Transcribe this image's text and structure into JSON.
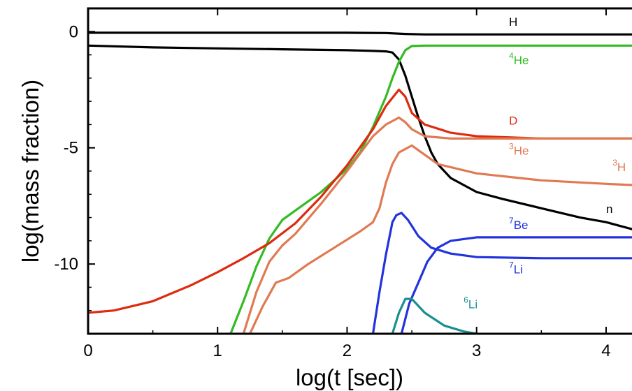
{
  "chart_data": {
    "type": "line",
    "xlabel": "log(t [sec])",
    "ylabel": "log(mass fraction)",
    "xlim": [
      0,
      4.2
    ],
    "ylim": [
      -13,
      1
    ],
    "x_ticks": [
      0,
      1,
      2,
      3,
      4
    ],
    "y_ticks": [
      0,
      -5,
      -10
    ],
    "x_tick_labels": [
      "0",
      "1",
      "2",
      "3",
      "4"
    ],
    "y_tick_labels": [
      "0",
      "-5",
      "-10"
    ],
    "grid": false,
    "legend": "none",
    "series": [
      {
        "id": "H",
        "sup": "",
        "base": "H",
        "color": "#000000",
        "points": [
          [
            0,
            -0.05
          ],
          [
            1,
            -0.05
          ],
          [
            2,
            -0.05
          ],
          [
            2.3,
            -0.06
          ],
          [
            2.45,
            -0.1
          ],
          [
            2.6,
            -0.12
          ],
          [
            3,
            -0.12
          ],
          [
            4.2,
            -0.12
          ]
        ]
      },
      {
        "id": "n",
        "sup": "",
        "base": "n",
        "color": "#000000",
        "points": [
          [
            0,
            -0.6
          ],
          [
            0.5,
            -0.68
          ],
          [
            1,
            -0.72
          ],
          [
            1.5,
            -0.76
          ],
          [
            2,
            -0.8
          ],
          [
            2.2,
            -0.83
          ],
          [
            2.3,
            -0.85
          ],
          [
            2.35,
            -0.9
          ],
          [
            2.4,
            -1.2
          ],
          [
            2.45,
            -1.9
          ],
          [
            2.5,
            -2.8
          ],
          [
            2.55,
            -3.7
          ],
          [
            2.6,
            -4.5
          ],
          [
            2.65,
            -5.2
          ],
          [
            2.7,
            -5.7
          ],
          [
            2.8,
            -6.3
          ],
          [
            3,
            -6.9
          ],
          [
            3.2,
            -7.2
          ],
          [
            3.5,
            -7.6
          ],
          [
            3.8,
            -8.0
          ],
          [
            4.0,
            -8.2
          ],
          [
            4.2,
            -8.5
          ]
        ]
      },
      {
        "id": "He4",
        "sup": "4",
        "base": "He",
        "color": "#33bb22",
        "points": [
          [
            1.1,
            -13
          ],
          [
            1.2,
            -11.6
          ],
          [
            1.3,
            -10.1
          ],
          [
            1.4,
            -8.9
          ],
          [
            1.5,
            -8.1
          ],
          [
            1.6,
            -7.7
          ],
          [
            1.8,
            -6.9
          ],
          [
            2.0,
            -5.9
          ],
          [
            2.1,
            -5.2
          ],
          [
            2.2,
            -4.1
          ],
          [
            2.3,
            -2.8
          ],
          [
            2.35,
            -2.0
          ],
          [
            2.4,
            -1.3
          ],
          [
            2.45,
            -0.8
          ],
          [
            2.5,
            -0.62
          ],
          [
            2.6,
            -0.6
          ],
          [
            3,
            -0.6
          ],
          [
            4.2,
            -0.6
          ]
        ]
      },
      {
        "id": "D",
        "sup": "",
        "base": "D",
        "color": "#dd2a10",
        "points": [
          [
            0,
            -12.1
          ],
          [
            0.2,
            -12.0
          ],
          [
            0.5,
            -11.6
          ],
          [
            0.8,
            -10.9
          ],
          [
            1.0,
            -10.35
          ],
          [
            1.2,
            -9.75
          ],
          [
            1.4,
            -9.1
          ],
          [
            1.6,
            -8.25
          ],
          [
            1.8,
            -7.1
          ],
          [
            2.0,
            -5.75
          ],
          [
            2.2,
            -4.2
          ],
          [
            2.3,
            -3.2
          ],
          [
            2.4,
            -2.5
          ],
          [
            2.45,
            -2.8
          ],
          [
            2.5,
            -3.5
          ],
          [
            2.6,
            -4.0
          ],
          [
            2.8,
            -4.35
          ],
          [
            3.0,
            -4.5
          ],
          [
            3.5,
            -4.6
          ],
          [
            4.2,
            -4.6
          ]
        ]
      },
      {
        "id": "He3",
        "sup": "3",
        "base": "He",
        "color": "#e07a52",
        "points": [
          [
            1.2,
            -13
          ],
          [
            1.3,
            -11.2
          ],
          [
            1.4,
            -9.9
          ],
          [
            1.5,
            -9.2
          ],
          [
            1.6,
            -8.7
          ],
          [
            1.8,
            -7.4
          ],
          [
            2.0,
            -6.0
          ],
          [
            2.2,
            -4.5
          ],
          [
            2.3,
            -4.0
          ],
          [
            2.4,
            -3.7
          ],
          [
            2.45,
            -3.9
          ],
          [
            2.5,
            -4.2
          ],
          [
            2.6,
            -4.5
          ],
          [
            2.8,
            -4.6
          ],
          [
            3.2,
            -4.6
          ],
          [
            4.2,
            -4.6
          ]
        ]
      },
      {
        "id": "H3",
        "sup": "3",
        "base": "H",
        "color": "#e07a52",
        "points": [
          [
            1.25,
            -13
          ],
          [
            1.35,
            -11.8
          ],
          [
            1.45,
            -10.8
          ],
          [
            1.55,
            -10.6
          ],
          [
            1.7,
            -10.0
          ],
          [
            1.9,
            -9.3
          ],
          [
            2.1,
            -8.6
          ],
          [
            2.2,
            -8.2
          ],
          [
            2.25,
            -7.6
          ],
          [
            2.3,
            -6.5
          ],
          [
            2.35,
            -5.7
          ],
          [
            2.4,
            -5.2
          ],
          [
            2.5,
            -4.9
          ],
          [
            2.6,
            -5.3
          ],
          [
            2.7,
            -5.7
          ],
          [
            3.0,
            -6.1
          ],
          [
            3.5,
            -6.4
          ],
          [
            4.0,
            -6.55
          ],
          [
            4.2,
            -6.6
          ]
        ]
      },
      {
        "id": "Be7",
        "sup": "7",
        "base": "Be",
        "color": "#2233dd",
        "points": [
          [
            2.2,
            -13
          ],
          [
            2.25,
            -11.2
          ],
          [
            2.3,
            -9.6
          ],
          [
            2.35,
            -8.2
          ],
          [
            2.38,
            -7.9
          ],
          [
            2.42,
            -7.8
          ],
          [
            2.47,
            -8.1
          ],
          [
            2.55,
            -8.8
          ],
          [
            2.65,
            -9.3
          ],
          [
            2.8,
            -9.55
          ],
          [
            3.0,
            -9.7
          ],
          [
            3.5,
            -9.75
          ],
          [
            4.2,
            -9.75
          ]
        ]
      },
      {
        "id": "Li7",
        "sup": "7",
        "base": "Li",
        "color": "#2233dd",
        "points": [
          [
            2.42,
            -13
          ],
          [
            2.48,
            -11.7
          ],
          [
            2.55,
            -10.8
          ],
          [
            2.62,
            -9.9
          ],
          [
            2.7,
            -9.3
          ],
          [
            2.8,
            -9.0
          ],
          [
            3.0,
            -8.85
          ],
          [
            3.5,
            -8.85
          ],
          [
            4.2,
            -8.85
          ]
        ]
      },
      {
        "id": "Li6",
        "sup": "6",
        "base": "Li",
        "color": "#1a8f8f",
        "points": [
          [
            2.35,
            -13
          ],
          [
            2.4,
            -12.1
          ],
          [
            2.45,
            -11.5
          ],
          [
            2.5,
            -11.5
          ],
          [
            2.6,
            -12.1
          ],
          [
            2.75,
            -12.65
          ],
          [
            2.9,
            -12.9
          ],
          [
            3.0,
            -13
          ]
        ]
      }
    ],
    "labels": [
      {
        "series": "H",
        "x": 3.25,
        "y": 0.25
      },
      {
        "series": "He4",
        "x": 3.25,
        "y": -1.4
      },
      {
        "series": "D",
        "x": 3.25,
        "y": -4.0
      },
      {
        "series": "He3",
        "x": 3.25,
        "y": -5.3
      },
      {
        "series": "H3",
        "x": 4.05,
        "y": -6.0
      },
      {
        "series": "n",
        "x": 4.0,
        "y": -7.8
      },
      {
        "series": "Be7",
        "x": 3.25,
        "y": -8.5
      },
      {
        "series": "Li7",
        "x": 3.25,
        "y": -10.4
      },
      {
        "series": "Li6",
        "x": 2.9,
        "y": -11.9
      }
    ]
  }
}
